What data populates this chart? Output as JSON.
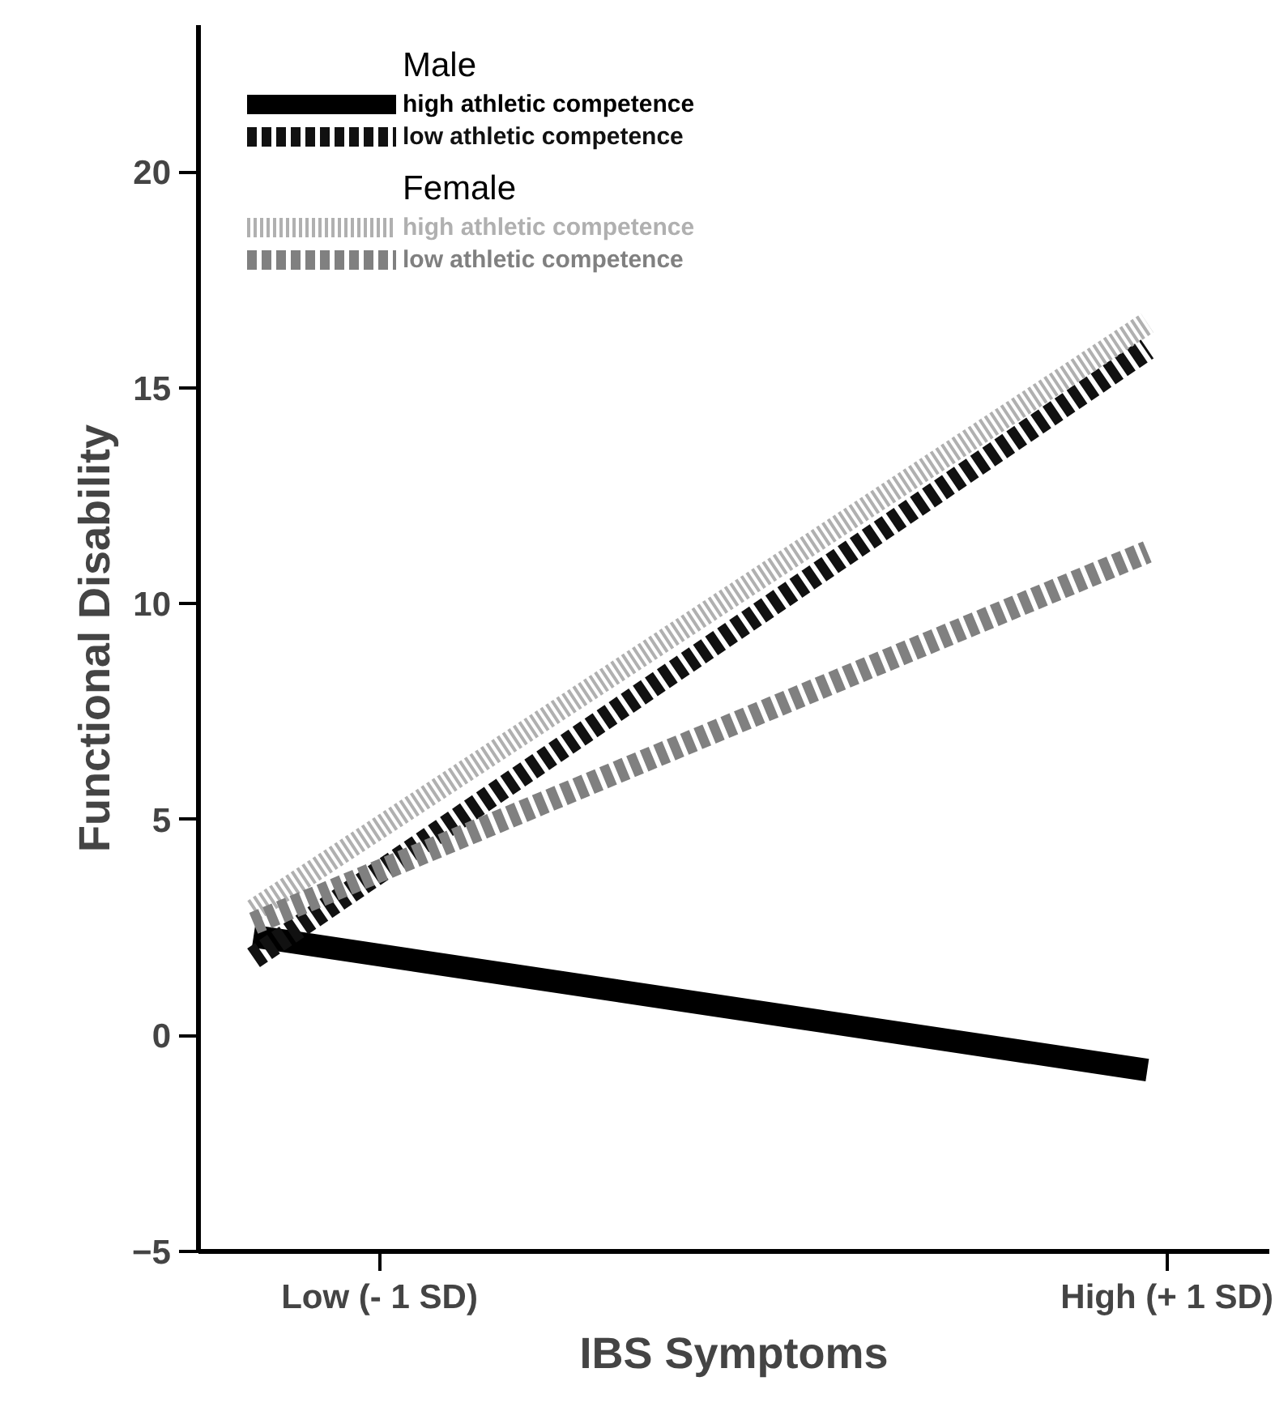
{
  "chart_data": {
    "type": "line",
    "xlabel": "IBS Symptoms",
    "ylabel": "Functional Disability",
    "x": [
      -1.32,
      0.95
    ],
    "xlim": [
      -1.46,
      1.26
    ],
    "xticks": [
      {
        "value": -1,
        "label": "Low (- 1 SD)"
      },
      {
        "value": 1,
        "label": "High (+ 1 SD)"
      }
    ],
    "ylim": [
      -5,
      23.4
    ],
    "yticks": [
      -5,
      0,
      5,
      10,
      15,
      20
    ],
    "legend": "top left",
    "legend_title": [
      "Male",
      "Female"
    ],
    "grid": false,
    "marker": "none",
    "series": [
      {
        "name": "high athletic competence",
        "color": "#000000",
        "line_style": "solid",
        "values": [
          2.3,
          -0.8
        ]
      },
      {
        "name": "low athletic competence",
        "color": "#111111",
        "line_style": "dashed",
        "values": [
          1.8,
          15.9
        ]
      },
      {
        "name": "high athletic competence",
        "color": "#b0b0b0",
        "line_style": "dotted",
        "values": [
          2.9,
          16.5
        ]
      },
      {
        "name": "low athletic competence",
        "color": "#808080",
        "line_style": "dashed",
        "values": [
          2.6,
          11.2
        ]
      }
    ]
  }
}
